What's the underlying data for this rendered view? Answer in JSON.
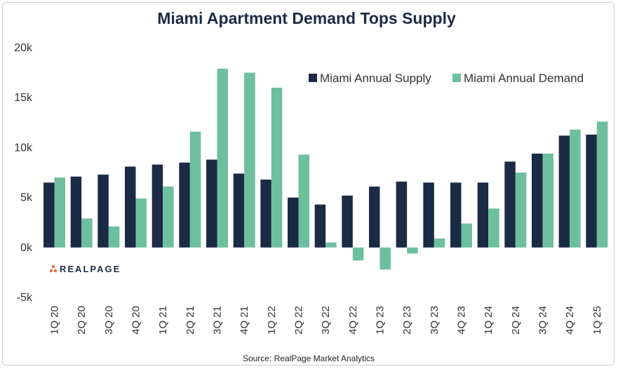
{
  "chart_data": {
    "type": "bar",
    "title": "Miami Apartment Demand Tops Supply",
    "categories": [
      "1Q 20",
      "2Q 20",
      "3Q 20",
      "4Q 20",
      "1Q 21",
      "2Q 21",
      "3Q 21",
      "4Q 21",
      "1Q 22",
      "2Q 22",
      "3Q 22",
      "4Q 22",
      "1Q 23",
      "2Q 23",
      "3Q 23",
      "4Q 23",
      "1Q 24",
      "2Q 24",
      "3Q 24",
      "4Q 24",
      "1Q 25"
    ],
    "series": [
      {
        "name": "Miami Annual Supply",
        "color": "#1c2b45",
        "values": [
          6500,
          7100,
          7300,
          8100,
          8300,
          8500,
          8800,
          7400,
          6800,
          5000,
          4300,
          5200,
          6100,
          6600,
          6500,
          6500,
          6500,
          8600,
          9400,
          11200,
          11300
        ]
      },
      {
        "name": "Miami Annual Demand",
        "color": "#6dbf9e",
        "values": [
          7000,
          2900,
          2100,
          4900,
          6100,
          11600,
          17900,
          17500,
          16000,
          9300,
          500,
          -1300,
          -2200,
          -600,
          900,
          2400,
          3900,
          7500,
          9400,
          11800,
          12600
        ]
      }
    ],
    "ylim": [
      -5000,
      20000
    ],
    "yticks": [
      {
        "value": 20000,
        "label": "20k"
      },
      {
        "value": 15000,
        "label": "15k"
      },
      {
        "value": 10000,
        "label": "10k"
      },
      {
        "value": 5000,
        "label": "5k"
      },
      {
        "value": 0,
        "label": "0k"
      },
      {
        "value": -5000,
        "label": "-5k"
      }
    ],
    "legend_position": "top-right",
    "xlabel": "",
    "ylabel": ""
  },
  "brand": {
    "name": "REALPAGE",
    "dot_color": "#f26b3a"
  },
  "source": "Source: RealPage Market Analytics"
}
